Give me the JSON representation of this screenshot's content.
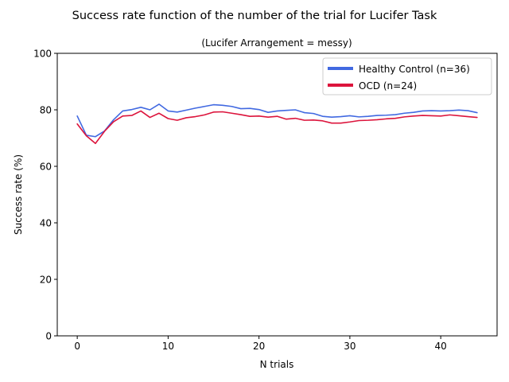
{
  "chart_data": {
    "type": "line",
    "title": "Success rate function of the number of the trial for Lucifer Task",
    "subtitle": "(Lucifer Arrangement = messy)",
    "xlabel": "N trials",
    "ylabel": "Success rate (%)",
    "xlim": [
      -2.2,
      46.2
    ],
    "ylim": [
      0,
      100
    ],
    "xticks": [
      0,
      10,
      20,
      30,
      40
    ],
    "yticks": [
      0,
      20,
      40,
      60,
      80,
      100
    ],
    "grid": false,
    "legend_position": "upper right",
    "x": [
      0,
      1,
      2,
      3,
      4,
      5,
      6,
      7,
      8,
      9,
      10,
      11,
      12,
      13,
      14,
      15,
      16,
      17,
      18,
      19,
      20,
      21,
      22,
      23,
      24,
      25,
      26,
      27,
      28,
      29,
      30,
      31,
      32,
      33,
      34,
      35,
      36,
      37,
      38,
      39,
      40,
      41,
      42,
      43,
      44
    ],
    "series": [
      {
        "name": "Healthy Control (n=36)",
        "color": "#4169e1",
        "values": [
          77.8,
          71.0,
          70.5,
          72.5,
          76.5,
          79.6,
          80.1,
          80.9,
          80.0,
          82.0,
          79.6,
          79.2,
          79.9,
          80.6,
          81.2,
          81.8,
          81.6,
          81.2,
          80.4,
          80.5,
          80.1,
          79.1,
          79.6,
          79.8,
          80.0,
          79.0,
          78.7,
          77.7,
          77.4,
          77.6,
          77.9,
          77.5,
          77.7,
          78.0,
          78.1,
          78.3,
          78.8,
          79.1,
          79.6,
          79.7,
          79.6,
          79.7,
          79.9,
          79.7,
          79.0
        ]
      },
      {
        "name": "OCD (n=24)",
        "color": "#dc143c",
        "values": [
          75.0,
          70.8,
          68.1,
          72.4,
          75.8,
          77.8,
          78.0,
          79.6,
          77.3,
          78.8,
          76.9,
          76.3,
          77.2,
          77.6,
          78.2,
          79.2,
          79.3,
          78.8,
          78.3,
          77.7,
          77.8,
          77.4,
          77.7,
          76.7,
          77.0,
          76.3,
          76.4,
          76.1,
          75.3,
          75.3,
          75.7,
          76.2,
          76.3,
          76.5,
          76.8,
          77.0,
          77.5,
          77.8,
          78.0,
          77.9,
          77.8,
          78.2,
          77.9,
          77.6,
          77.3
        ]
      }
    ]
  }
}
